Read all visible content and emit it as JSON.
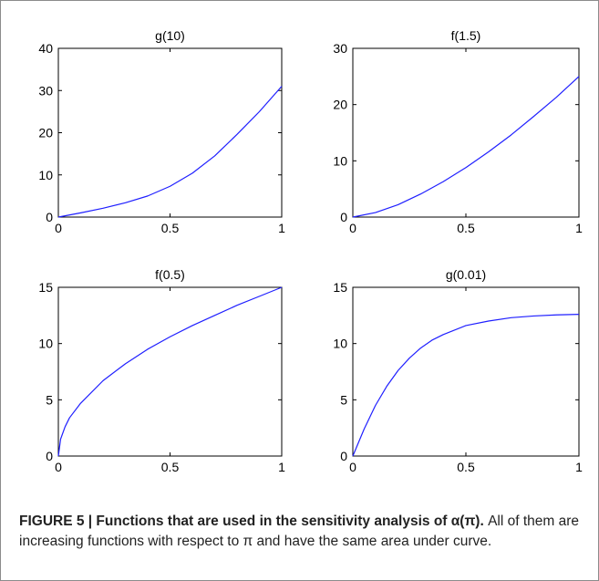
{
  "caption": {
    "title": "FIGURE 5 | Functions that are used in the sensitivity analysis of α(π).",
    "body": "All of them are increasing functions with respect to π and have the same area under curve."
  },
  "colors": {
    "line": "#1f1fff",
    "axis": "#000000"
  },
  "chart_data": [
    {
      "type": "line",
      "title": "g(10)",
      "xlim": [
        0,
        1
      ],
      "ylim": [
        0,
        40
      ],
      "xticks": [
        0,
        0.5,
        1
      ],
      "xtick_labels": [
        "0",
        "0.5",
        "1"
      ],
      "yticks": [
        0,
        10,
        20,
        30,
        40
      ],
      "ytick_labels": [
        "0",
        "10",
        "20",
        "30",
        "40"
      ],
      "series": [
        {
          "x": [
            0,
            0.1,
            0.2,
            0.3,
            0.4,
            0.5,
            0.6,
            0.7,
            0.8,
            0.9,
            1.0
          ],
          "y": [
            0,
            1.0,
            2.1,
            3.4,
            5.0,
            7.3,
            10.4,
            14.5,
            19.6,
            25.0,
            31.0
          ]
        }
      ]
    },
    {
      "type": "line",
      "title": "f(1.5)",
      "xlim": [
        0,
        1
      ],
      "ylim": [
        0,
        30
      ],
      "xticks": [
        0,
        0.5,
        1
      ],
      "xtick_labels": [
        "0",
        "0.5",
        "1"
      ],
      "yticks": [
        0,
        10,
        20,
        30
      ],
      "ytick_labels": [
        "0",
        "10",
        "20",
        "30"
      ],
      "series": [
        {
          "x": [
            0,
            0.1,
            0.2,
            0.3,
            0.4,
            0.5,
            0.6,
            0.7,
            0.8,
            0.9,
            1.0
          ],
          "y": [
            0,
            0.8,
            2.2,
            4.1,
            6.3,
            8.8,
            11.6,
            14.6,
            17.9,
            21.3,
            25.0
          ]
        }
      ]
    },
    {
      "type": "line",
      "title": "f(0.5)",
      "xlim": [
        0,
        1
      ],
      "ylim": [
        0,
        15
      ],
      "xticks": [
        0,
        0.5,
        1
      ],
      "xtick_labels": [
        "0",
        "0.5",
        "1"
      ],
      "yticks": [
        0,
        5,
        10,
        15
      ],
      "ytick_labels": [
        "0",
        "5",
        "10",
        "15"
      ],
      "series": [
        {
          "x": [
            0,
            0.01,
            0.03,
            0.05,
            0.1,
            0.2,
            0.3,
            0.4,
            0.5,
            0.6,
            0.7,
            0.8,
            0.9,
            1.0
          ],
          "y": [
            0,
            1.5,
            2.6,
            3.4,
            4.7,
            6.7,
            8.2,
            9.5,
            10.6,
            11.6,
            12.5,
            13.4,
            14.2,
            15.0
          ]
        }
      ]
    },
    {
      "type": "line",
      "title": "g(0.01)",
      "xlim": [
        0,
        1
      ],
      "ylim": [
        0,
        15
      ],
      "xticks": [
        0,
        0.5,
        1
      ],
      "xtick_labels": [
        "0",
        "0.5",
        "1"
      ],
      "yticks": [
        0,
        5,
        10,
        15
      ],
      "ytick_labels": [
        "0",
        "5",
        "10",
        "15"
      ],
      "series": [
        {
          "x": [
            0,
            0.05,
            0.1,
            0.15,
            0.2,
            0.25,
            0.3,
            0.35,
            0.4,
            0.5,
            0.6,
            0.7,
            0.8,
            0.9,
            1.0
          ],
          "y": [
            0,
            2.4,
            4.5,
            6.2,
            7.6,
            8.7,
            9.6,
            10.3,
            10.8,
            11.6,
            12.0,
            12.3,
            12.45,
            12.55,
            12.6
          ]
        }
      ]
    }
  ]
}
